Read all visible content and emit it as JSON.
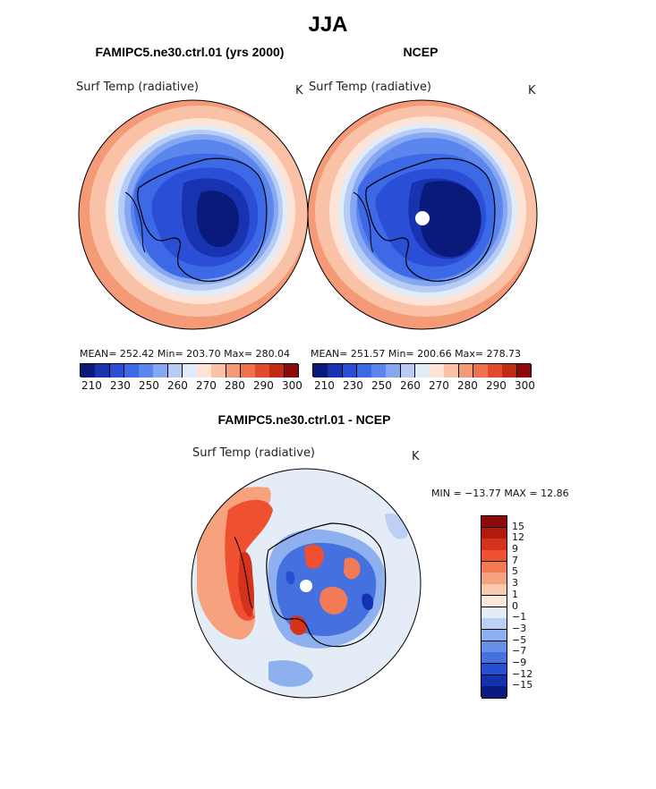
{
  "main_title": "JJA",
  "panels": [
    {
      "title": "FAMIPC5.ne30.ctrl.01 (yrs 2000)",
      "variable": "Surf Temp (radiative)",
      "unit": "K",
      "stats": "MEAN= 252.42   Min= 203.70   Max= 280.04"
    },
    {
      "title": "NCEP",
      "variable": "Surf Temp (radiative)",
      "unit": "K",
      "stats": "MEAN= 251.57   Min= 200.66   Max= 278.73"
    }
  ],
  "abs_colorbar": {
    "colors": [
      "#0a1a7a",
      "#1833b0",
      "#2a4fd6",
      "#3d68e6",
      "#5a86ee",
      "#86a8f2",
      "#b6ccf5",
      "#e2ecf8",
      "#fde4d6",
      "#f9c2a6",
      "#f59a76",
      "#f0714e",
      "#e2492d",
      "#c22a18",
      "#8e0a0a"
    ],
    "tick_labels": [
      "210",
      "230",
      "250",
      "260",
      "270",
      "280",
      "290",
      "300"
    ]
  },
  "diff_panel": {
    "title": "FAMIPC5.ne30.ctrl.01 - NCEP",
    "variable": "Surf Temp (radiative)",
    "unit": "K",
    "minmax": "MIN = −13.77  MAX =   12.86"
  },
  "diff_colorbar": {
    "colors": [
      "#8e0a0a",
      "#b21a10",
      "#d4321a",
      "#ee5030",
      "#f27a55",
      "#f6a27e",
      "#f9c8b0",
      "#fde8dc",
      "#e4ecf8",
      "#bcd0f4",
      "#8fb0ee",
      "#6690e8",
      "#4470e0",
      "#2550d0",
      "#1233b0",
      "#0a1a80"
    ],
    "tick_labels": [
      "15",
      "12",
      "9",
      "7",
      "5",
      "3",
      "1",
      "0",
      "−1",
      "−3",
      "−5",
      "−7",
      "−9",
      "−12",
      "−15"
    ]
  }
}
